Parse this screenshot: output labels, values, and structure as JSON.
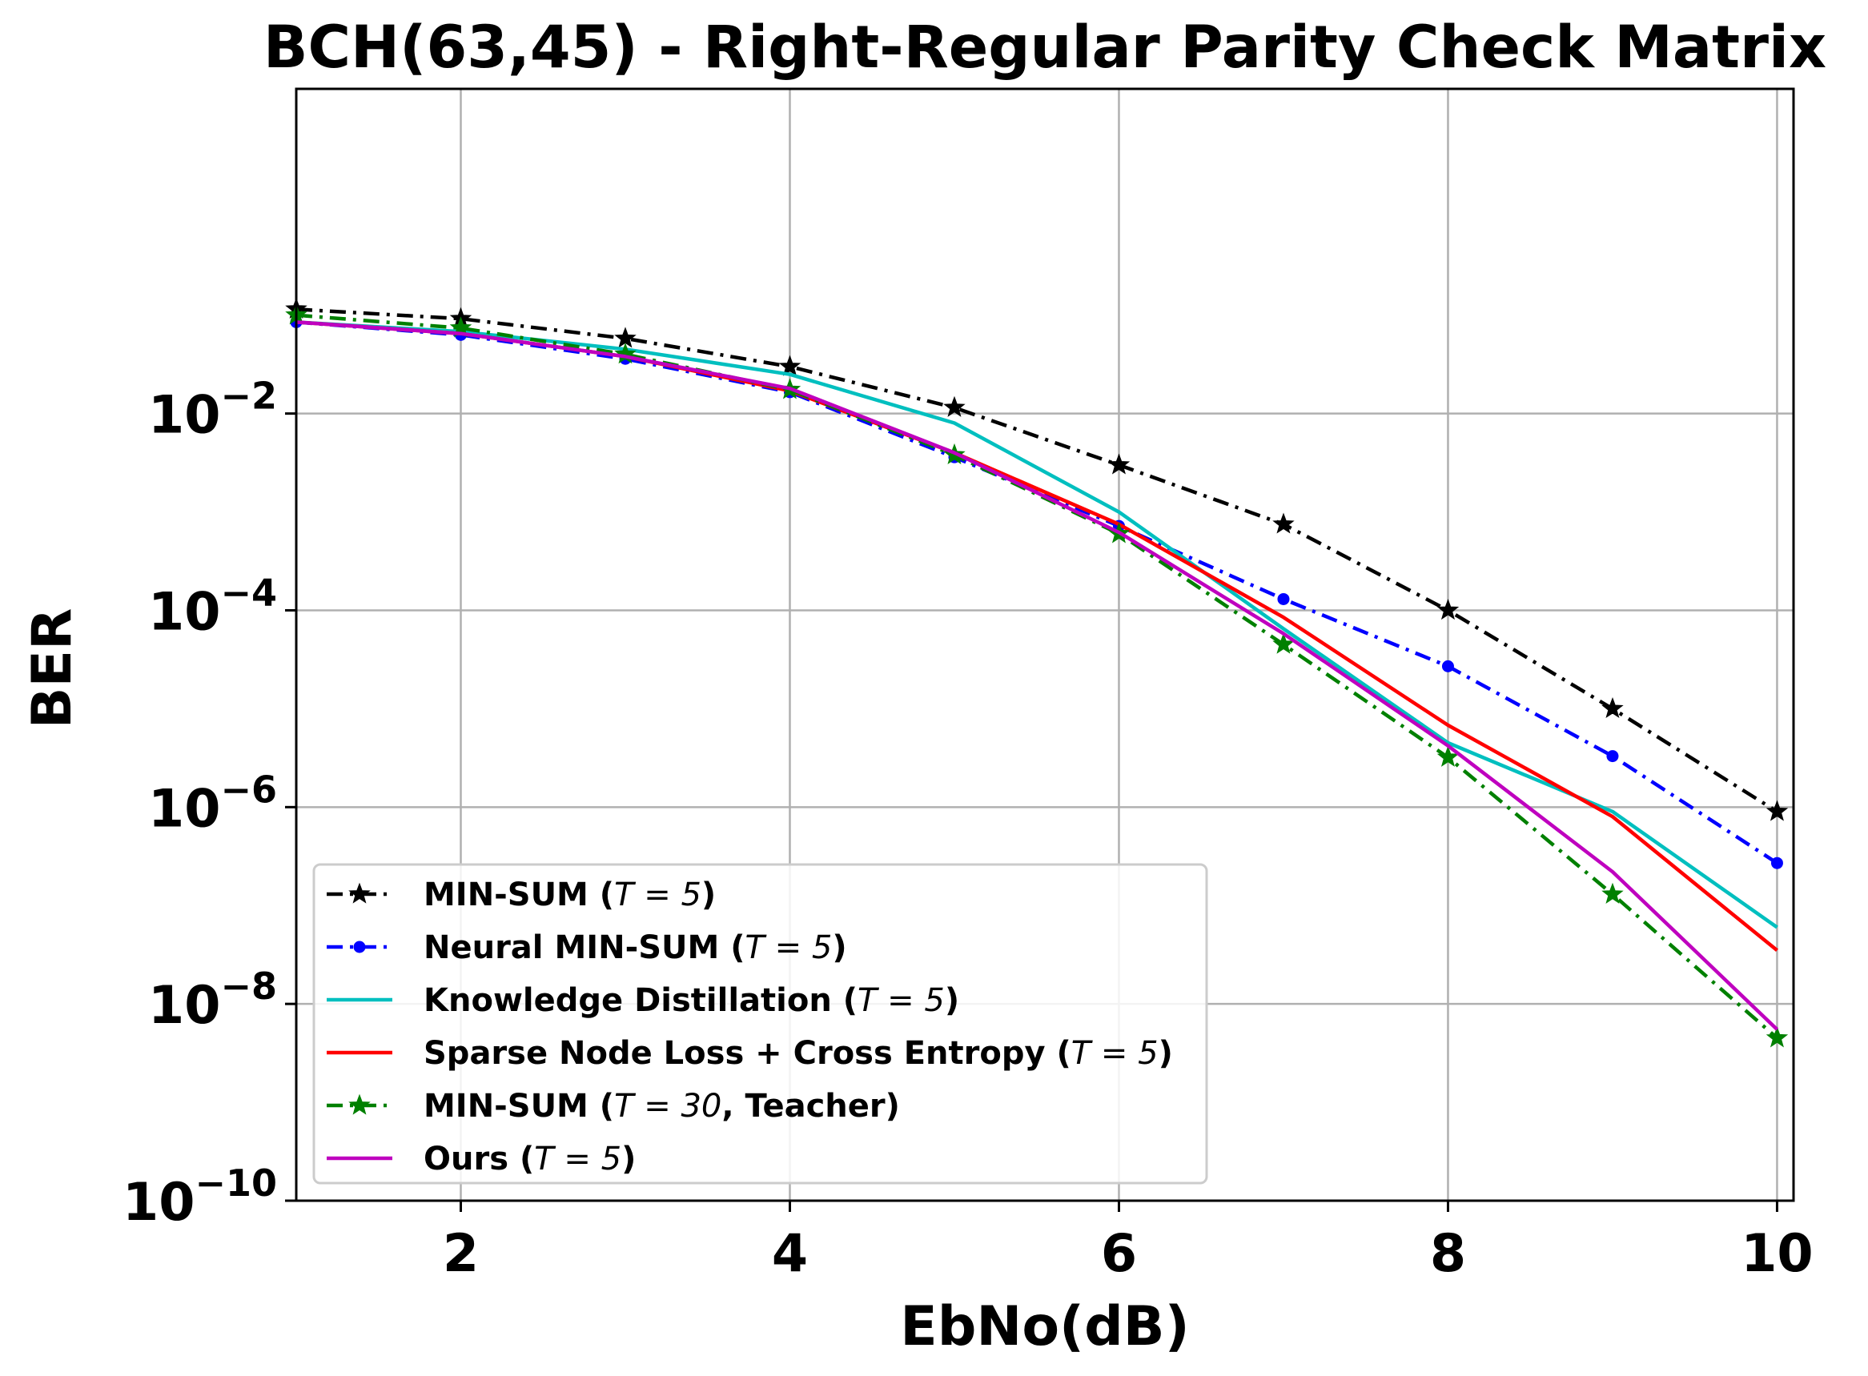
{
  "chart_data": {
    "type": "line",
    "title": "BCH(63,45) - Right-Regular Parity Check Matrix",
    "xlabel": "EbNo(dB)",
    "ylabel": "BER",
    "xlim": [
      1,
      10.1
    ],
    "ylim_log10": [
      -10,
      1.3
    ],
    "yscale": "log",
    "grid": true,
    "legend_position": "lower-left",
    "x_ticks": [
      {
        "value": 2,
        "label": "2"
      },
      {
        "value": 4,
        "label": "4"
      },
      {
        "value": 6,
        "label": "6"
      },
      {
        "value": 8,
        "label": "8"
      },
      {
        "value": 10,
        "label": "10"
      }
    ],
    "y_ticks": [
      {
        "exp": -2,
        "base": "10",
        "sup": "−2"
      },
      {
        "exp": -4,
        "base": "10",
        "sup": "−4"
      },
      {
        "exp": -6,
        "base": "10",
        "sup": "−6"
      },
      {
        "exp": -8,
        "base": "10",
        "sup": "−8"
      },
      {
        "exp": -10,
        "base": "10",
        "sup": "−10"
      }
    ],
    "series": [
      {
        "name": "MIN-SUM (T = 5)",
        "legend_pre": "MIN-SUM (",
        "legend_math": "T = 5",
        "legend_post": ")",
        "color": "#000000",
        "dash": "dashdot",
        "marker": "star",
        "x": [
          1,
          2,
          3,
          4,
          5,
          6,
          7,
          8,
          9,
          10
        ],
        "y": [
          0.115,
          0.092,
          0.058,
          0.03,
          0.0115,
          0.003,
          0.00075,
          0.0001,
          1e-05,
          9e-07
        ]
      },
      {
        "name": "Neural MIN-SUM (T = 5)",
        "legend_pre": "Neural MIN-SUM (",
        "legend_math": "T = 5",
        "legend_post": ")",
        "color": "#0000ff",
        "dash": "dashdot",
        "marker": "dot",
        "x": [
          1,
          2,
          3,
          4,
          5,
          6,
          7,
          8,
          9,
          10
        ],
        "y": [
          0.085,
          0.063,
          0.036,
          0.0165,
          0.0036,
          0.00072,
          0.00013,
          2.7e-05,
          3.3e-06,
          2.7e-07
        ]
      },
      {
        "name": "Knowledge Distillation (T = 5)",
        "legend_pre": "Knowledge Distillation (",
        "legend_math": "T = 5",
        "legend_post": ")",
        "color": "#00bfbf",
        "dash": "solid",
        "marker": "none",
        "x": [
          1,
          2,
          3,
          4,
          5,
          6,
          7,
          8,
          9,
          10
        ],
        "y": [
          0.085,
          0.068,
          0.045,
          0.025,
          0.008,
          0.001,
          6.5e-05,
          4.5e-06,
          9e-07,
          6e-08
        ]
      },
      {
        "name": "Sparse Node Loss + Cross Entropy (T = 5)",
        "legend_pre": "Sparse Node Loss + Cross Entropy (",
        "legend_math": "T = 5",
        "legend_post": ")",
        "color": "#ff0000",
        "dash": "solid",
        "marker": "none",
        "x": [
          1,
          2,
          3,
          4,
          5,
          6,
          7,
          8,
          9,
          10
        ],
        "y": [
          0.085,
          0.065,
          0.038,
          0.017,
          0.004,
          0.00075,
          8.5e-05,
          6.8e-06,
          8e-07,
          3.5e-08
        ]
      },
      {
        "name": "MIN-SUM (T = 30, Teacher)",
        "legend_pre": "MIN-SUM (",
        "legend_math": "T = 30",
        "legend_post": ", Teacher)",
        "color": "#008000",
        "dash": "dashdot",
        "marker": "star",
        "x": [
          1,
          2,
          3,
          4,
          5,
          6,
          7,
          8,
          9,
          10
        ],
        "y": [
          0.1,
          0.074,
          0.04,
          0.0175,
          0.0038,
          0.0006,
          4.5e-05,
          3.2e-06,
          1.3e-07,
          4.5e-09
        ]
      },
      {
        "name": "Ours (T = 5)",
        "legend_pre": "Ours (",
        "legend_math": "T = 5",
        "legend_post": ")",
        "color": "#bf00bf",
        "dash": "solid",
        "marker": "none",
        "x": [
          1,
          2,
          3,
          4,
          5,
          6,
          7,
          8,
          9,
          10
        ],
        "y": [
          0.085,
          0.065,
          0.038,
          0.018,
          0.004,
          0.00062,
          5.8e-05,
          4.2e-06,
          2.2e-07,
          5.5e-09
        ]
      }
    ]
  }
}
